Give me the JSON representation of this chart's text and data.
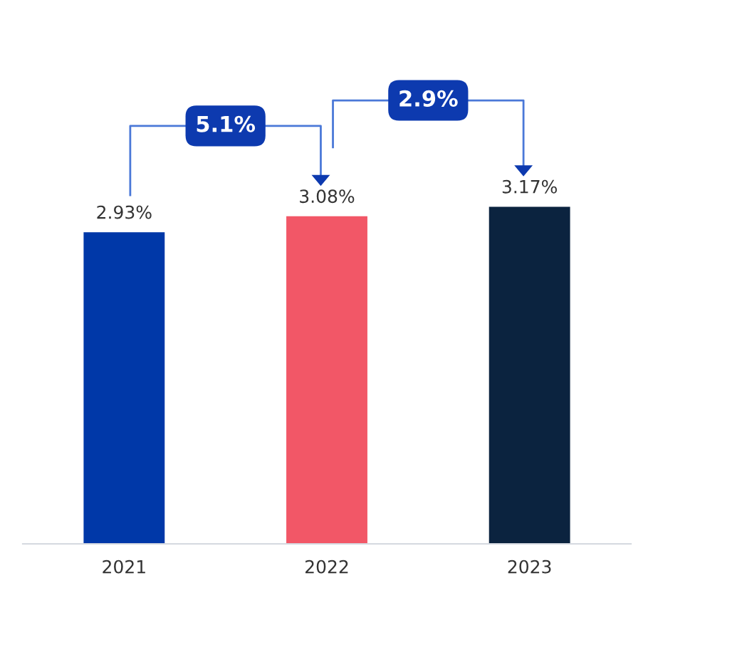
{
  "chart_data": {
    "type": "bar",
    "categories": [
      "2021",
      "2022",
      "2023"
    ],
    "values": [
      2.93,
      3.08,
      3.17
    ],
    "colors": [
      "#0038a8",
      "#f25767",
      "#0b233f"
    ],
    "value_labels": [
      "2.93%",
      "3.08%",
      "3.17%"
    ],
    "tick_labels": "x",
    "grid": false,
    "legend": false,
    "annotations": [
      "5.1%",
      "2.9%"
    ]
  }
}
